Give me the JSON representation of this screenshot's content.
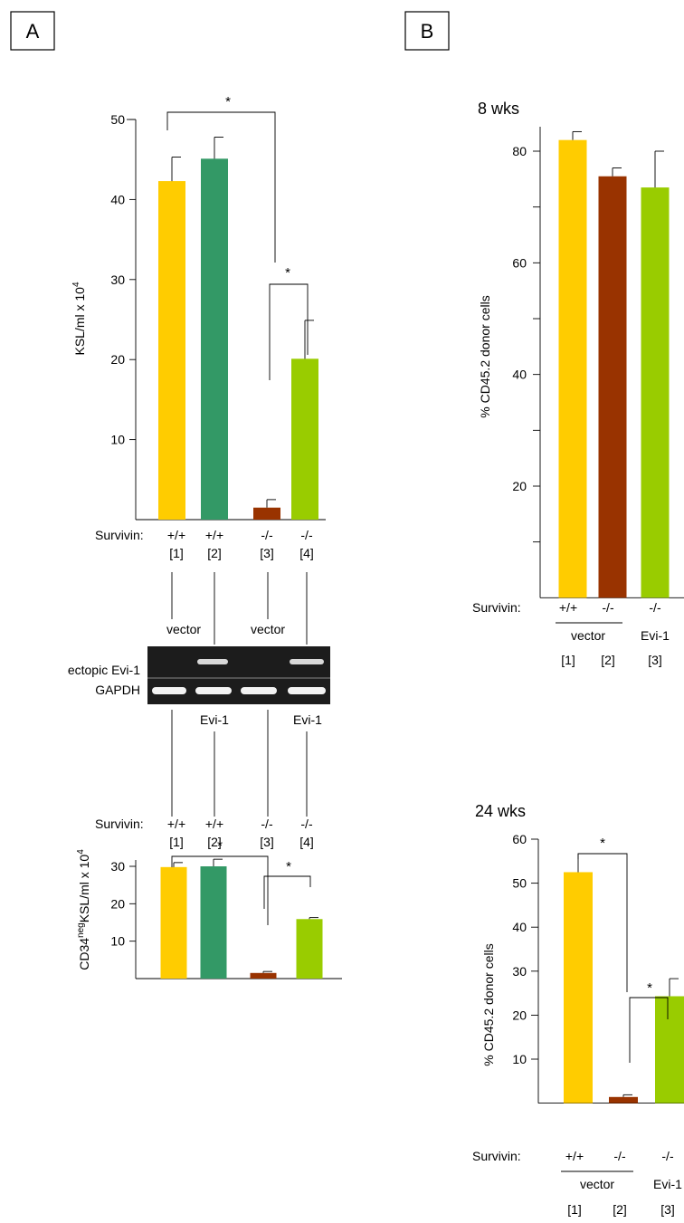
{
  "panels": {
    "a": "A",
    "b": "B"
  },
  "survivin_label": "Survivin:",
  "gel": {
    "lane_top_labels": [
      "vector",
      "",
      "vector",
      ""
    ],
    "lane_bottom_labels": [
      "",
      "Evi-1",
      "",
      "Evi-1"
    ],
    "row_labels": [
      "ectopic Evi-1",
      "GAPDH"
    ]
  },
  "colors": {
    "yellow": "#FFCC00",
    "green": "#339966",
    "brown": "#993300",
    "lime": "#99CC00"
  },
  "chart_data": [
    {
      "id": "a_top",
      "type": "bar",
      "ylabel_main": "KSL/ml x 10",
      "ylabel_sup": "4",
      "ylim": [
        0,
        50
      ],
      "yticks": [
        10,
        20,
        30,
        40,
        50
      ],
      "categories": [
        "+/+",
        "+/+",
        "-/-",
        "-/-"
      ],
      "indices": [
        "[1]",
        "[2]",
        "[3]",
        "[4]"
      ],
      "values": [
        42.3,
        45.1,
        1.5,
        20.1
      ],
      "errors": [
        3.0,
        2.7,
        1.0,
        4.8
      ],
      "significance": [
        "*",
        "*"
      ]
    },
    {
      "id": "a_bottom",
      "type": "bar",
      "ylabel_parts": [
        "CD34",
        "neg",
        "KSL/ml x 10",
        "4"
      ],
      "ylim": [
        0,
        35
      ],
      "yticks": [
        10,
        20,
        30
      ],
      "categories": [
        "+/+",
        "+/+",
        "-/-",
        "-/-"
      ],
      "indices": [
        "[1]",
        "[2]",
        "[3]",
        "[4]"
      ],
      "values": [
        29.8,
        30.0,
        1.5,
        15.9
      ],
      "errors": [
        1.2,
        1.9,
        0.4,
        0.4
      ],
      "significance": [
        "*",
        "*"
      ]
    },
    {
      "id": "b_top",
      "type": "bar",
      "title": "8 wks",
      "ylabel": "% CD45.2 donor cells",
      "ylim": [
        0,
        85
      ],
      "yticks": [
        20,
        40,
        60,
        80
      ],
      "categories": [
        "+/+",
        "-/-",
        "-/-"
      ],
      "group_labels": [
        "vector",
        "Evi-1"
      ],
      "indices": [
        "[1]",
        "[2]",
        "[3]"
      ],
      "values": [
        82,
        75.5,
        73.5
      ],
      "errors": [
        1.5,
        1.5,
        6.5
      ]
    },
    {
      "id": "b_bottom",
      "type": "bar",
      "title": "24 wks",
      "ylabel": "% CD45.2 donor cells",
      "ylim": [
        0,
        60
      ],
      "yticks": [
        10,
        20,
        30,
        40,
        50,
        60
      ],
      "categories": [
        "+/+",
        "-/-",
        "-/-"
      ],
      "group_labels": [
        "vector",
        "Evi-1"
      ],
      "indices": [
        "[1]",
        "[2]",
        "[3]"
      ],
      "values": [
        52.5,
        1.4,
        24.3
      ],
      "errors": [
        4.2,
        0.5,
        4.0
      ],
      "significance": [
        "*",
        "*"
      ]
    }
  ]
}
